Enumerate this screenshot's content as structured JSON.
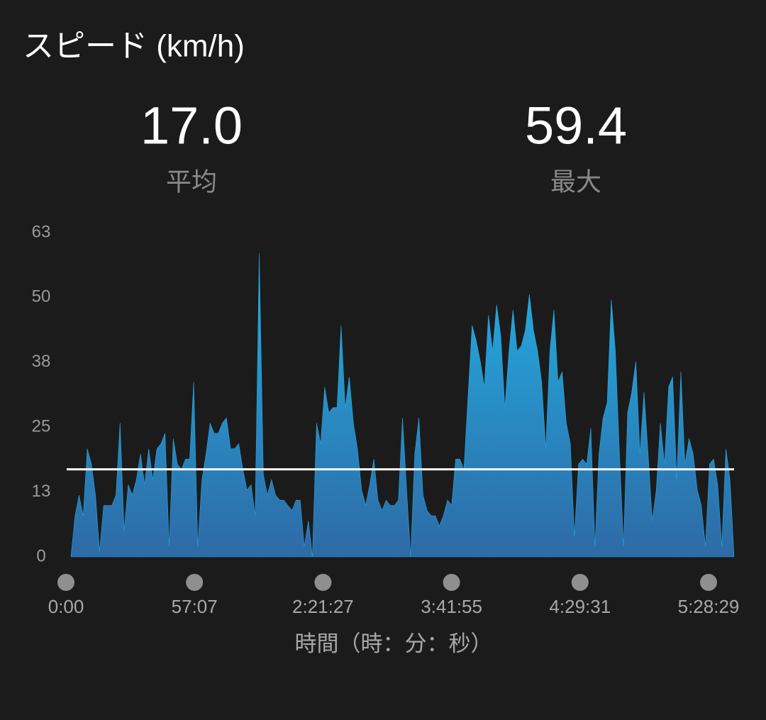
{
  "chart_data": {
    "type": "area",
    "title": "スピード (km/h)",
    "stats": [
      {
        "value": 17,
        "label": "17.0",
        "name": "平均"
      },
      {
        "value": 59.4,
        "name": "最大"
      }
    ],
    "series": [
      {
        "color": "#23a7dc",
        "values": [
          0,
          8,
          12,
          8,
          21,
          18,
          12,
          1,
          10,
          10,
          10,
          12,
          26,
          5,
          14,
          12,
          15,
          20,
          14,
          21,
          15,
          21,
          22,
          24,
          2,
          23,
          18,
          17,
          19,
          19,
          34,
          2,
          15,
          20,
          26,
          24,
          24,
          26,
          27,
          21,
          21,
          22,
          17,
          13,
          14,
          8,
          59,
          16,
          12,
          15,
          12,
          11,
          11,
          10,
          9,
          11,
          11,
          2,
          7,
          0,
          26,
          22,
          33,
          28,
          29,
          29,
          45,
          29,
          35,
          26,
          21,
          13,
          10,
          14,
          19,
          11,
          9,
          11,
          10,
          10,
          11,
          27,
          13,
          0,
          20,
          27,
          12,
          9,
          8,
          8,
          6,
          8,
          11,
          10,
          19,
          19,
          17,
          31,
          45,
          42,
          38,
          33,
          47,
          40,
          49,
          43,
          29,
          40,
          48,
          40,
          41,
          44,
          51,
          44,
          40,
          34,
          21,
          40,
          48,
          34,
          36,
          26,
          22,
          4,
          18,
          19,
          18,
          25,
          2,
          20,
          27,
          30,
          50,
          40,
          20,
          2,
          28,
          32,
          38,
          20,
          32,
          20,
          7,
          13,
          26,
          18,
          33,
          35,
          15,
          36,
          18,
          23,
          20,
          13,
          10,
          2,
          18,
          19,
          14,
          2,
          21,
          15,
          0
        ]
      }
    ],
    "x_tick_labels": [
      "0:00",
      "57:07",
      "2:21:27",
      "3:41:55",
      "4:29:31",
      "5:28:29"
    ],
    "x_label": "時間（時：分：秒）",
    "ylim": [
      0,
      63
    ],
    "yticks": [
      0,
      {
        "value": 12.6,
        "label": "13"
      },
      {
        "value": 25.2,
        "label": "25"
      },
      {
        "value": 37.8,
        "label": "38"
      },
      {
        "value": 50.4,
        "label": "50"
      },
      63
    ]
  }
}
